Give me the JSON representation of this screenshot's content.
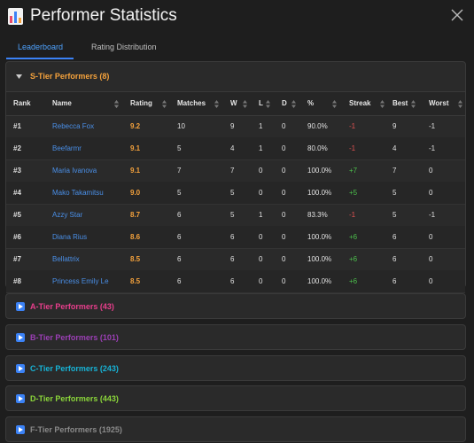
{
  "window": {
    "title": "Performer Statistics"
  },
  "tabs": [
    {
      "label": "Leaderboard",
      "active": true
    },
    {
      "label": "Rating Distribution",
      "active": false
    }
  ],
  "s_tier": {
    "label": "S-Tier Performers (8)",
    "color": "#f5a23c",
    "columns": [
      "Rank",
      "Name",
      "Rating",
      "Matches",
      "W",
      "L",
      "D",
      "%",
      "Streak",
      "Best",
      "Worst"
    ],
    "rows": [
      [
        "#1",
        "Rebecca Fox",
        "9.2",
        "10",
        "9",
        "1",
        "0",
        "90.0%",
        "-1",
        "9",
        "-1"
      ],
      [
        "#2",
        "Beefarmr",
        "9.1",
        "5",
        "4",
        "1",
        "0",
        "80.0%",
        "-1",
        "4",
        "-1"
      ],
      [
        "#3",
        "Maria Ivanova",
        "9.1",
        "7",
        "7",
        "0",
        "0",
        "100.0%",
        "+7",
        "7",
        "0"
      ],
      [
        "#4",
        "Mako Takamitsu",
        "9.0",
        "5",
        "5",
        "0",
        "0",
        "100.0%",
        "+5",
        "5",
        "0"
      ],
      [
        "#5",
        "Azzy Star",
        "8.7",
        "6",
        "5",
        "1",
        "0",
        "83.3%",
        "-1",
        "5",
        "-1"
      ],
      [
        "#6",
        "Diana Rius",
        "8.6",
        "6",
        "6",
        "0",
        "0",
        "100.0%",
        "+6",
        "6",
        "0"
      ],
      [
        "#7",
        "Bellattrix",
        "8.5",
        "6",
        "6",
        "0",
        "0",
        "100.0%",
        "+6",
        "6",
        "0"
      ],
      [
        "#8",
        "Princess Emily Le",
        "8.5",
        "6",
        "6",
        "0",
        "0",
        "100.0%",
        "+6",
        "6",
        "0"
      ]
    ]
  },
  "other_tiers": [
    {
      "label": "A-Tier Performers (43)",
      "color": "#e83e8c"
    },
    {
      "label": "B-Tier Performers (101)",
      "color": "#9b3fb5"
    },
    {
      "label": "C-Tier Performers (243)",
      "color": "#17b3d6"
    },
    {
      "label": "D-Tier Performers (443)",
      "color": "#8bd63a"
    },
    {
      "label": "F-Tier Performers (1925)",
      "color": "#8a8a8a"
    }
  ],
  "icons": {
    "app": "bar-chart-icon",
    "close": "close-icon",
    "expanded": "triangle-down-icon",
    "collapsed": "play-square-icon",
    "sort": "sort-arrows-icon"
  }
}
